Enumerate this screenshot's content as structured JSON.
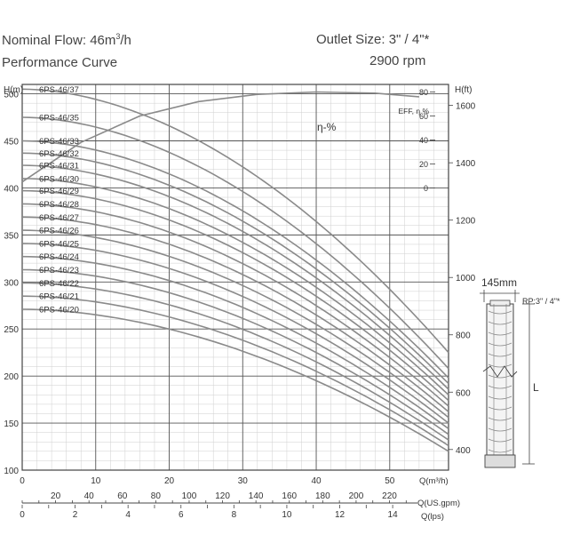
{
  "header": {
    "flow_prefix": "Nominal Flow: 46m",
    "flow_sup": "3",
    "flow_suffix": "/h",
    "subtitle": "Performance Curve",
    "outlet": "Outlet Size: 3\" / 4\"*",
    "rpm": "2900 rpm"
  },
  "pump": {
    "width_label": "145mm",
    "rp_label": "RP:3\" / 4\"*",
    "length_label": "L"
  },
  "chart_data": {
    "type": "line",
    "title": "Performance Curve",
    "left_axis": {
      "label": "H(m)",
      "range": [
        100,
        500
      ],
      "ticks": [
        100,
        150,
        200,
        250,
        300,
        350,
        400,
        450,
        500
      ]
    },
    "right_axis": {
      "label": "H(ft)",
      "ticks": [
        400,
        600,
        800,
        1000,
        1200,
        1400,
        1600
      ]
    },
    "eff_axis": {
      "label": "EFF, η %",
      "ticks": [
        0,
        20,
        40,
        60,
        80
      ],
      "range": [
        0,
        80
      ]
    },
    "x_axes": [
      {
        "label": "Q(m³/h)",
        "range": [
          0,
          58
        ],
        "ticks": [
          0,
          10,
          20,
          30,
          40,
          50
        ]
      },
      {
        "label": "Q(US.gpm)",
        "ticks": [
          20,
          40,
          60,
          80,
          100,
          120,
          140,
          160,
          180,
          200,
          220
        ]
      },
      {
        "label": "Q(lps)",
        "ticks": [
          0,
          2,
          4,
          6,
          8,
          10,
          12,
          14
        ]
      }
    ],
    "grid": true,
    "efficiency": {
      "name": "η-%",
      "x": [
        0,
        8,
        16,
        24,
        32,
        40,
        48,
        54
      ],
      "y": [
        5,
        38,
        60,
        72,
        78,
        80,
        79,
        76
      ]
    },
    "series": [
      {
        "name": "6PS-46/37",
        "h0": 505,
        "h_end": 225
      },
      {
        "name": "6PS-46/35",
        "h0": 475,
        "h_end": 208
      },
      {
        "name": "6PS-46/33",
        "h0": 450,
        "h_end": 198
      },
      {
        "name": "6PS-46/32",
        "h0": 437,
        "h_end": 192
      },
      {
        "name": "6PS-46/31",
        "h0": 424,
        "h_end": 186
      },
      {
        "name": "6PS-46/30",
        "h0": 410,
        "h_end": 180
      },
      {
        "name": "6PS-46/29",
        "h0": 397,
        "h_end": 174
      },
      {
        "name": "6PS-46/28",
        "h0": 383,
        "h_end": 168
      },
      {
        "name": "6PS-46/27",
        "h0": 369,
        "h_end": 162
      },
      {
        "name": "6PS-46/26",
        "h0": 355,
        "h_end": 156
      },
      {
        "name": "6PS-46/25",
        "h0": 341,
        "h_end": 150
      },
      {
        "name": "6PS-46/24",
        "h0": 327,
        "h_end": 144
      },
      {
        "name": "6PS-46/23",
        "h0": 313,
        "h_end": 138
      },
      {
        "name": "6PS-46/22",
        "h0": 299,
        "h_end": 132
      },
      {
        "name": "6PS-46/21",
        "h0": 285,
        "h_end": 126
      },
      {
        "name": "6PS-46/20",
        "h0": 271,
        "h_end": 120
      }
    ],
    "x_end": 58
  }
}
